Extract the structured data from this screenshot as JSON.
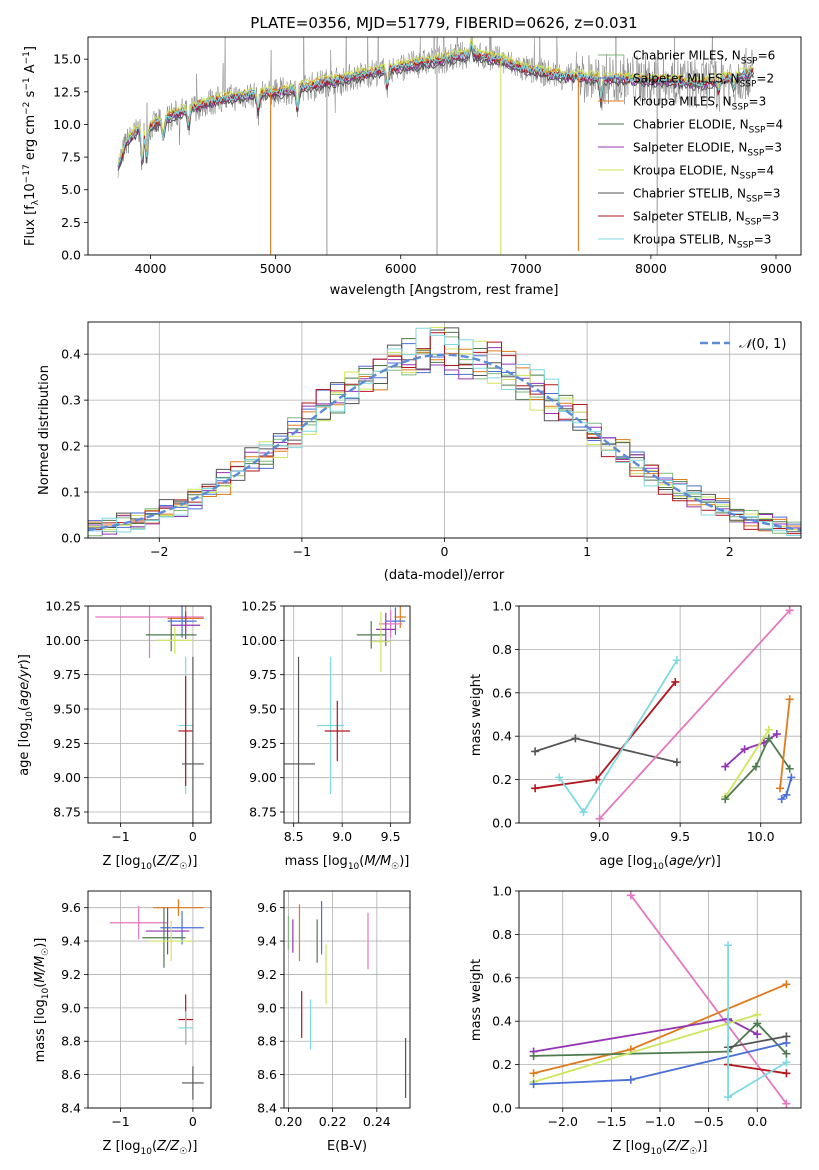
{
  "colors": {
    "chabrier_miles": "#7fb97f",
    "salpeter_miles": "#4a6fd6",
    "kroupa_miles": "#e07b1d",
    "chabrier_elodie": "#4f7a4f",
    "salpeter_elodie": "#9434b4",
    "kroupa_elodie": "#cde65a",
    "chabrier_stelib": "#555555",
    "salpeter_stelib": "#b2161e",
    "kroupa_stelib": "#7ed9e0",
    "pink": "#e377c2",
    "gauss": "#5b8bd9",
    "data_grey": "#7f7f7f"
  },
  "chart_data": [
    {
      "id": "spectrum",
      "type": "line",
      "title": "PLATE=0356, MJD=51779, FIBERID=0626, z=0.031",
      "xlabel": "wavelength [Angstrom, rest frame]",
      "ylabel": "Flux [f$_\\lambda$10$^{-17}$ erg cm$^{-2}$ s$^{-1}$ A$^{-1}$]",
      "xlim": [
        3500,
        9200
      ],
      "ylim": [
        0,
        16.7
      ],
      "xticks": [
        4000,
        5000,
        6000,
        7000,
        8000,
        9000
      ],
      "yticks": [
        0.0,
        2.5,
        5.0,
        7.5,
        10.0,
        12.5,
        15.0
      ],
      "legend_position": "top-right",
      "legend": [
        {
          "key": "chabrier_miles",
          "label": "Chabrier MILES, N",
          "sub": "SSP",
          "tail": "=6"
        },
        {
          "key": "salpeter_miles",
          "label": "Salpeter MILES, N",
          "sub": "SSP",
          "tail": "=2"
        },
        {
          "key": "kroupa_miles",
          "label": "Kroupa MILES, N",
          "sub": "SSP",
          "tail": "=3"
        },
        {
          "key": "chabrier_elodie",
          "label": "Chabrier ELODIE, N",
          "sub": "SSP",
          "tail": "=4"
        },
        {
          "key": "salpeter_elodie",
          "label": "Salpeter ELODIE, N",
          "sub": "SSP",
          "tail": "=3"
        },
        {
          "key": "kroupa_elodie",
          "label": "Kroupa ELODIE, N",
          "sub": "SSP",
          "tail": "=4"
        },
        {
          "key": "chabrier_stelib",
          "label": "Chabrier STELIB, N",
          "sub": "SSP",
          "tail": "=3"
        },
        {
          "key": "salpeter_stelib",
          "label": "Salpeter STELIB, N",
          "sub": "SSP",
          "tail": "=3"
        },
        {
          "key": "kroupa_stelib",
          "label": "Kroupa STELIB, N",
          "sub": "SSP",
          "tail": "=3"
        }
      ],
      "continuum": [
        [
          3750,
          7.0
        ],
        [
          3800,
          8.5
        ],
        [
          3900,
          9.6
        ],
        [
          4000,
          9.8
        ],
        [
          4200,
          10.8
        ],
        [
          4500,
          11.8
        ],
        [
          4800,
          12.3
        ],
        [
          5000,
          12.4
        ],
        [
          5300,
          13.0
        ],
        [
          5600,
          13.6
        ],
        [
          6000,
          14.4
        ],
        [
          6300,
          14.9
        ],
        [
          6560,
          15.4
        ],
        [
          6800,
          14.9
        ],
        [
          7000,
          14.2
        ],
        [
          7300,
          13.7
        ],
        [
          7600,
          13.5
        ],
        [
          8000,
          13.4
        ],
        [
          8400,
          13.1
        ],
        [
          8700,
          13.7
        ],
        [
          8800,
          14.0
        ]
      ],
      "absorption_features": [
        [
          3934,
          3.0
        ],
        [
          3969,
          2.5
        ],
        [
          4102,
          1.5
        ],
        [
          4304,
          1.5
        ],
        [
          4861,
          1.5
        ],
        [
          5175,
          2.0
        ],
        [
          5893,
          1.5
        ],
        [
          6563,
          -1.0
        ],
        [
          7600,
          2.0
        ],
        [
          8542,
          1.0
        ],
        [
          8662,
          1.0
        ]
      ],
      "model_spikes": [
        [
          4960,
          0.0
        ],
        [
          6800,
          0.0
        ],
        [
          7420,
          0.3
        ]
      ],
      "data_spikes": [
        [
          5410,
          0.0
        ],
        [
          6290,
          0.0
        ],
        [
          8050,
          0.0
        ]
      ]
    },
    {
      "id": "residuals",
      "type": "bar",
      "xlabel": "(data-model)/error",
      "ylabel": "Normed distribution",
      "xlim": [
        -2.5,
        2.5
      ],
      "ylim": [
        0,
        0.47
      ],
      "xticks": [
        -2,
        -1,
        0,
        1,
        2
      ],
      "yticks": [
        0.0,
        0.1,
        0.2,
        0.3,
        0.4
      ],
      "legend_position": "top-right",
      "reference_label": "N(0,1)",
      "reference": "normal(0,1)",
      "bin_width": 0.1,
      "series_note": "nine step histograms, one per model, roughly following a unit normal"
    },
    {
      "id": "age_vs_Z",
      "type": "scatter",
      "xlabel": "Z [log10(Z/Zsun)]",
      "ylabel": "age [log10(age/yr)]",
      "xlim": [
        -1.45,
        0.25
      ],
      "ylim": [
        8.67,
        10.25
      ],
      "xticks": [
        -1,
        0
      ],
      "yticks": [
        8.75,
        9.0,
        9.25,
        9.5,
        9.75,
        10.0,
        10.25
      ],
      "points": [
        {
          "key": "pink",
          "x": -0.6,
          "xerr": 0.75,
          "y": 10.17,
          "yerr": 0.3
        },
        {
          "key": "kroupa_miles",
          "x": -0.1,
          "xerr": 0.25,
          "y": 10.16,
          "yerr": 0.1
        },
        {
          "key": "salpeter_miles",
          "x": -0.15,
          "xerr": 0.2,
          "y": 10.14,
          "yerr": 0.12
        },
        {
          "key": "salpeter_elodie",
          "x": -0.1,
          "xerr": 0.2,
          "y": 10.11,
          "yerr": 0.1
        },
        {
          "key": "chabrier_elodie",
          "x": -0.3,
          "xerr": 0.35,
          "y": 10.04,
          "yerr": 0.12
        },
        {
          "key": "kroupa_elodie",
          "x": -0.25,
          "xerr": 0.25,
          "y": 10.0,
          "yerr": 0.1
        },
        {
          "key": "kroupa_stelib",
          "x": -0.1,
          "xerr": 0.1,
          "y": 9.38,
          "yerr": 0.5
        },
        {
          "key": "salpeter_stelib",
          "x": -0.1,
          "xerr": 0.1,
          "y": 9.34,
          "yerr": 0.4
        },
        {
          "key": "chabrier_stelib",
          "x": 0.0,
          "xerr": 0.15,
          "y": 9.1,
          "yerr": 0.78
        }
      ]
    },
    {
      "id": "age_vs_mass",
      "type": "scatter",
      "xlabel": "mass [log10(M/Msun)]",
      "ylabel": "",
      "xlim": [
        8.4,
        9.7
      ],
      "ylim": [
        8.67,
        10.25
      ],
      "xticks": [
        8.5,
        9.0,
        9.5
      ],
      "yticks": [
        8.75,
        9.0,
        9.25,
        9.5,
        9.75,
        10.0,
        10.25
      ],
      "points": [
        {
          "key": "kroupa_miles",
          "x": 9.6,
          "xerr": 0.06,
          "y": 10.17,
          "yerr": 0.08
        },
        {
          "key": "salpeter_miles",
          "x": 9.55,
          "xerr": 0.1,
          "y": 10.14,
          "yerr": 0.1
        },
        {
          "key": "pink",
          "x": 9.5,
          "xerr": 0.12,
          "y": 10.12,
          "yerr": 0.1
        },
        {
          "key": "salpeter_elodie",
          "x": 9.45,
          "xerr": 0.1,
          "y": 10.08,
          "yerr": 0.12
        },
        {
          "key": "chabrier_elodie",
          "x": 9.3,
          "xerr": 0.15,
          "y": 10.04,
          "yerr": 0.1
        },
        {
          "key": "kroupa_elodie",
          "x": 9.4,
          "xerr": 0.1,
          "y": 9.99,
          "yerr": 0.22
        },
        {
          "key": "kroupa_stelib",
          "x": 8.88,
          "xerr": 0.14,
          "y": 9.38,
          "yerr": 0.5
        },
        {
          "key": "salpeter_stelib",
          "x": 8.95,
          "xerr": 0.13,
          "y": 9.34,
          "yerr": 0.22
        },
        {
          "key": "chabrier_stelib",
          "x": 8.55,
          "xerr": 0.17,
          "y": 9.1,
          "yerr": 0.78
        }
      ]
    },
    {
      "id": "massweight_vs_age",
      "type": "line",
      "xlabel": "age [log10(age/yr)]",
      "ylabel": "mass weight",
      "xlim": [
        8.5,
        10.25
      ],
      "ylim": [
        0,
        1.0
      ],
      "xticks": [
        9.0,
        9.5,
        10.0
      ],
      "yticks": [
        0.0,
        0.2,
        0.4,
        0.6,
        0.8,
        1.0
      ],
      "series": [
        {
          "key": "chabrier_stelib",
          "x": [
            8.6,
            8.85,
            9.48
          ],
          "y": [
            0.33,
            0.39,
            0.28
          ]
        },
        {
          "key": "salpeter_stelib",
          "x": [
            8.6,
            8.98,
            9.47
          ],
          "y": [
            0.16,
            0.2,
            0.65
          ]
        },
        {
          "key": "kroupa_stelib",
          "x": [
            8.75,
            8.9,
            9.48
          ],
          "y": [
            0.21,
            0.05,
            0.75
          ]
        },
        {
          "key": "pink",
          "x": [
            9.0,
            10.18
          ],
          "y": [
            0.02,
            0.98
          ]
        },
        {
          "key": "salpeter_elodie",
          "x": [
            9.78,
            9.9,
            10.02,
            10.1
          ],
          "y": [
            0.26,
            0.34,
            0.37,
            0.41
          ]
        },
        {
          "key": "kroupa_elodie",
          "x": [
            9.78,
            10.05
          ],
          "y": [
            0.12,
            0.43
          ]
        },
        {
          "key": "chabrier_elodie",
          "x": [
            9.78,
            9.97,
            10.05,
            10.18
          ],
          "y": [
            0.11,
            0.26,
            0.39,
            0.25
          ]
        },
        {
          "key": "kroupa_miles",
          "x": [
            10.12,
            10.18
          ],
          "y": [
            0.16,
            0.57
          ]
        },
        {
          "key": "salpeter_miles",
          "x": [
            10.13,
            10.16,
            10.19
          ],
          "y": [
            0.11,
            0.13,
            0.21
          ]
        }
      ]
    },
    {
      "id": "mass_vs_Z",
      "type": "scatter",
      "xlabel": "Z [log10(Z/Zsun)]",
      "ylabel": "mass [log10(M/Msun)]",
      "xlim": [
        -1.45,
        0.25
      ],
      "ylim": [
        8.4,
        9.7
      ],
      "xticks": [
        -1,
        0
      ],
      "yticks": [
        8.4,
        8.6,
        8.8,
        9.0,
        9.2,
        9.4,
        9.6
      ],
      "points": [
        {
          "key": "kroupa_miles",
          "x": -0.2,
          "xerr": 0.35,
          "y": 9.6,
          "yerr": 0.05
        },
        {
          "key": "pink",
          "x": -0.75,
          "xerr": 0.4,
          "y": 9.51,
          "yerr": 0.1
        },
        {
          "key": "salpeter_miles",
          "x": -0.15,
          "xerr": 0.3,
          "y": 9.48,
          "yerr": 0.1
        },
        {
          "key": "salpeter_elodie",
          "x": -0.35,
          "xerr": 0.3,
          "y": 9.46,
          "yerr": 0.14
        },
        {
          "key": "chabrier_elodie",
          "x": -0.4,
          "xerr": 0.3,
          "y": 9.42,
          "yerr": 0.18
        },
        {
          "key": "kroupa_elodie",
          "x": -0.3,
          "xerr": 0.3,
          "y": 9.4,
          "yerr": 0.12
        },
        {
          "key": "salpeter_stelib",
          "x": -0.1,
          "xerr": 0.1,
          "y": 8.93,
          "yerr": 0.15
        },
        {
          "key": "kroupa_stelib",
          "x": -0.1,
          "xerr": 0.1,
          "y": 8.88,
          "yerr": 0.1
        },
        {
          "key": "chabrier_stelib",
          "x": 0.0,
          "xerr": 0.15,
          "y": 8.55,
          "yerr": 0.1
        }
      ]
    },
    {
      "id": "mass_vs_ebv",
      "type": "scatter",
      "xlabel": "E(B-V)",
      "ylabel": "",
      "xlim": [
        0.198,
        0.255
      ],
      "ylim": [
        8.4,
        9.7
      ],
      "xticks": [
        0.2,
        0.22,
        0.24
      ],
      "yticks": [
        8.4,
        8.6,
        8.8,
        9.0,
        9.2,
        9.4,
        9.6
      ],
      "points": [
        {
          "key": "chabrier_miles",
          "x": 0.2,
          "xerr": 0,
          "y": 9.45,
          "yerr": 0.1
        },
        {
          "key": "salpeter_elodie",
          "x": 0.202,
          "xerr": 0,
          "y": 9.43,
          "yerr": 0.1
        },
        {
          "key": "kroupa_miles",
          "x": 0.205,
          "xerr": 0,
          "y": 9.45,
          "yerr": 0.17
        },
        {
          "key": "salpeter_stelib",
          "x": 0.206,
          "xerr": 0,
          "y": 8.96,
          "yerr": 0.14
        },
        {
          "key": "kroupa_stelib",
          "x": 0.21,
          "xerr": 0,
          "y": 8.9,
          "yerr": 0.15
        },
        {
          "key": "chabrier_elodie",
          "x": 0.213,
          "xerr": 0,
          "y": 9.4,
          "yerr": 0.13
        },
        {
          "key": "salpeter_miles",
          "x": 0.215,
          "xerr": 0,
          "y": 9.48,
          "yerr": 0.16
        },
        {
          "key": "kroupa_elodie",
          "x": 0.217,
          "xerr": 0,
          "y": 9.2,
          "yerr": 0.18
        },
        {
          "key": "pink",
          "x": 0.236,
          "xerr": 0,
          "y": 9.4,
          "yerr": 0.17
        },
        {
          "key": "chabrier_stelib",
          "x": 0.253,
          "xerr": 0,
          "y": 8.64,
          "yerr": 0.18
        }
      ]
    },
    {
      "id": "massweight_vs_Z",
      "type": "line",
      "xlabel": "Z [log10(Z/Zsun)]",
      "ylabel": "mass weight",
      "xlim": [
        -2.45,
        0.45
      ],
      "ylim": [
        0,
        1.0
      ],
      "xticks": [
        -2.0,
        -1.5,
        -1.0,
        -0.5,
        0.0
      ],
      "yticks": [
        0.0,
        0.2,
        0.4,
        0.6,
        0.8,
        1.0
      ],
      "series": [
        {
          "key": "pink",
          "x": [
            -1.3,
            0.3
          ],
          "y": [
            0.98,
            0.02
          ]
        },
        {
          "key": "kroupa_miles",
          "x": [
            -2.3,
            -1.3,
            0.3
          ],
          "y": [
            0.16,
            0.27,
            0.57
          ]
        },
        {
          "key": "salpeter_elodie",
          "x": [
            -2.3,
            -0.3,
            0.0
          ],
          "y": [
            0.26,
            0.41,
            0.34
          ]
        },
        {
          "key": "chabrier_elodie",
          "x": [
            -2.3,
            -0.3,
            0.0,
            0.3
          ],
          "y": [
            0.24,
            0.26,
            0.39,
            0.25
          ]
        },
        {
          "key": "kroupa_elodie",
          "x": [
            -2.3,
            0.0
          ],
          "y": [
            0.12,
            0.43
          ]
        },
        {
          "key": "salpeter_miles",
          "x": [
            -2.3,
            -1.3,
            0.3
          ],
          "y": [
            0.11,
            0.13,
            0.3
          ]
        },
        {
          "key": "chabrier_stelib",
          "x": [
            -0.3,
            0.3
          ],
          "y": [
            0.28,
            0.33
          ]
        },
        {
          "key": "salpeter_stelib",
          "x": [
            -0.3,
            0.3
          ],
          "y": [
            0.2,
            0.16
          ]
        },
        {
          "key": "kroupa_stelib",
          "x": [
            -0.3,
            -0.3,
            0.3
          ],
          "y": [
            0.75,
            0.05,
            0.21
          ]
        }
      ]
    }
  ]
}
